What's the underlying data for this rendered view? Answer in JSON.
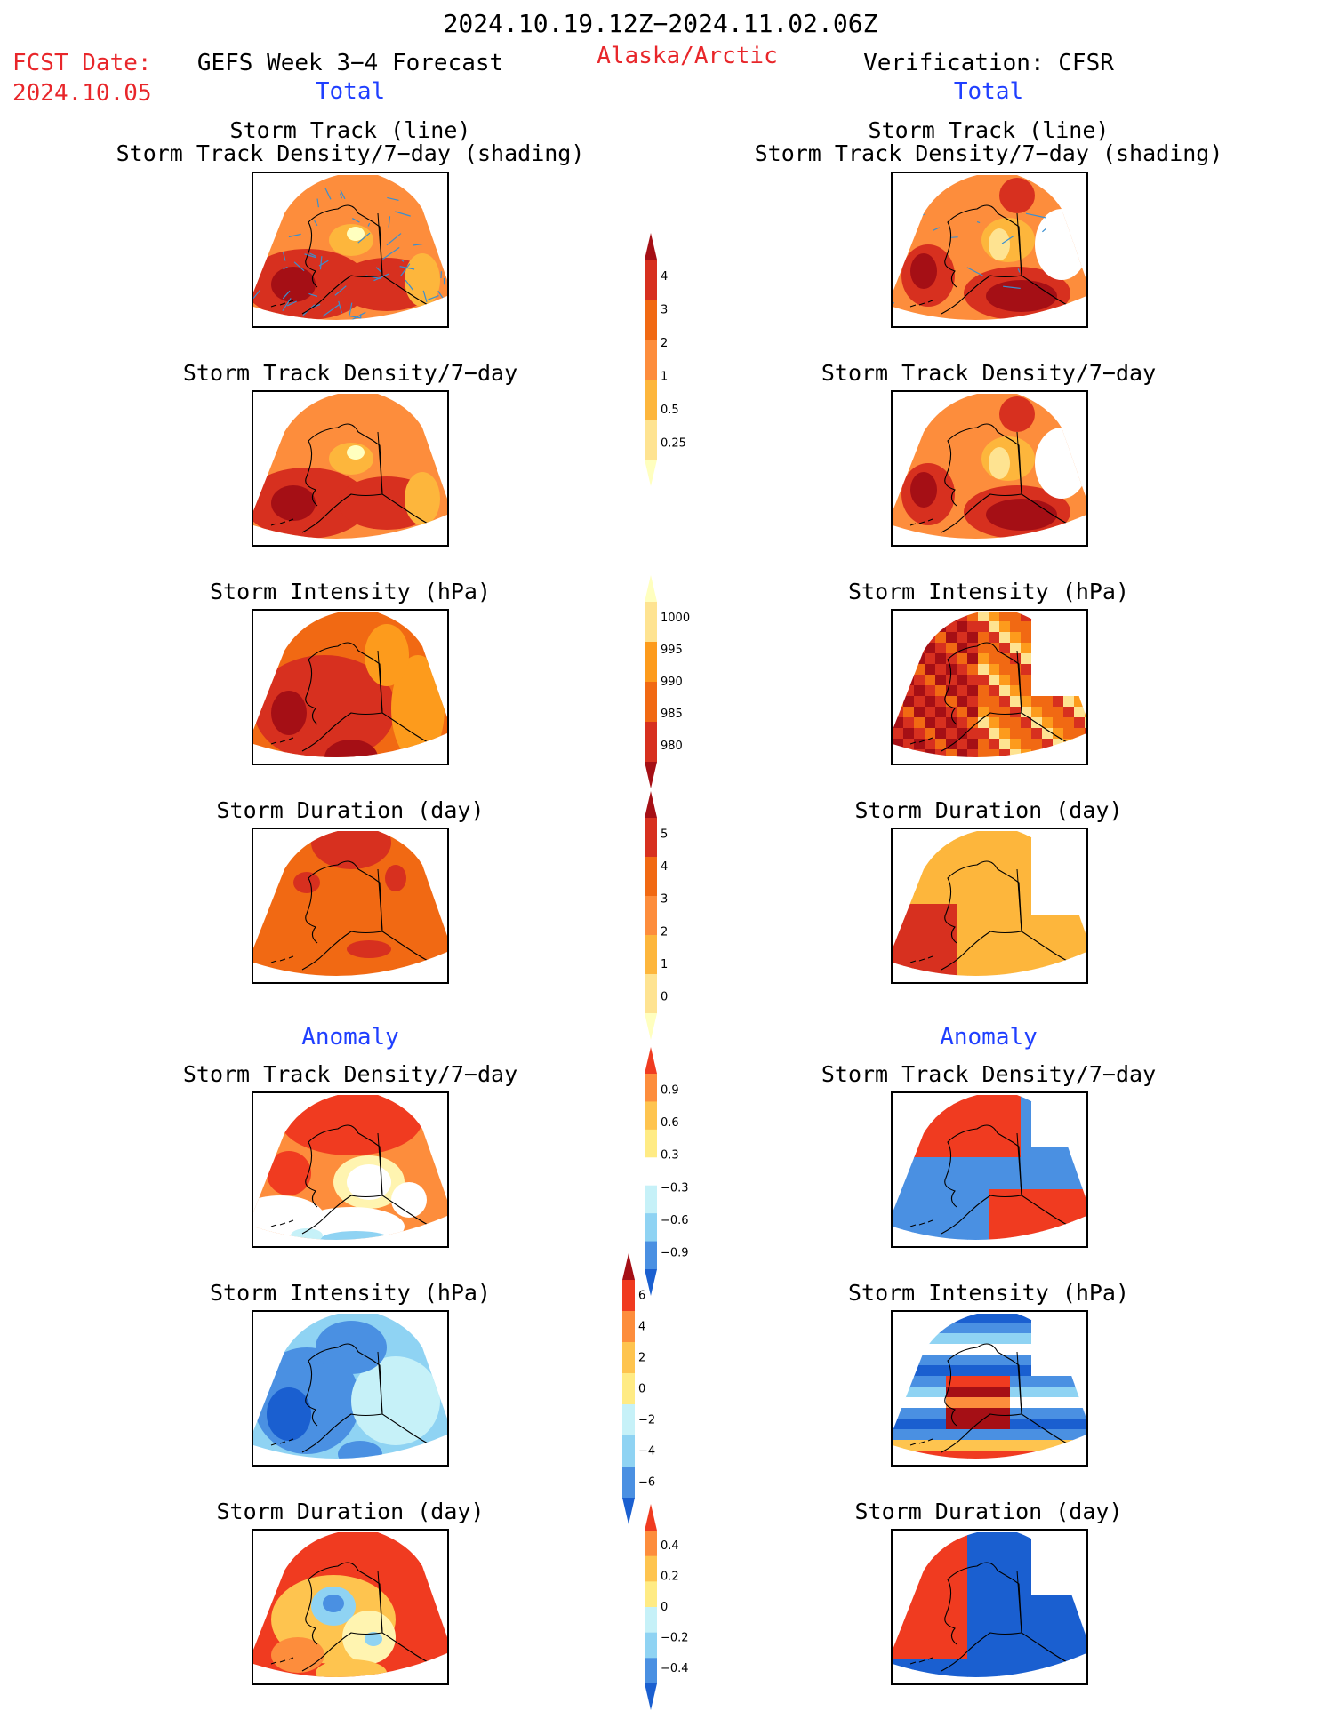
{
  "header": {
    "date_range": "2024.10.19.12Z−2024.11.02.06Z",
    "fcst_label": "FCST Date:",
    "fcst_date": "2024.10.05",
    "left_title": "GEFS Week 3−4 Forecast",
    "region": "Alaska/Arctic",
    "right_title": "Verification: CFSR",
    "total_label": "Total",
    "anomaly_label": "Anomaly"
  },
  "panel_titles": {
    "track_line": "Storm Track (line)",
    "track_shading": "Storm Track Density/7−day (shading)",
    "density": "Storm Track Density/7−day",
    "intensity": "Storm Intensity (hPa)",
    "duration": "Storm Duration (day)"
  },
  "colorbars": {
    "density": {
      "labels": [
        "4",
        "3",
        "2",
        "1",
        "0.5",
        "0.25"
      ],
      "colors": [
        "#a50f15",
        "#d7301f",
        "#f16913",
        "#fd8d3c",
        "#fdb63c",
        "#fee391",
        "#ffffbf"
      ]
    },
    "intensity": {
      "labels": [
        "1000",
        "995",
        "990",
        "985",
        "980"
      ],
      "colors": [
        "#ffffbf",
        "#fee391",
        "#fd9b1c",
        "#f16913",
        "#d7301f",
        "#a50f15"
      ]
    },
    "duration": {
      "labels": [
        "5",
        "4",
        "3",
        "2",
        "1",
        "0"
      ],
      "colors": [
        "#a50f15",
        "#d7301f",
        "#f16913",
        "#fd8d3c",
        "#fdb63c",
        "#fee391",
        "#ffffbf"
      ]
    },
    "anom_density": {
      "labels": [
        "0.9",
        "0.6",
        "0.3",
        "−0.3",
        "−0.6",
        "−0.9"
      ],
      "colors": [
        "#f03b20",
        "#fd8d3c",
        "#fec44f",
        "#ffeb84",
        "#ffffff",
        "#c6f1f8",
        "#8fd3f3",
        "#4a90e2",
        "#1a5fd0"
      ]
    },
    "anom_intensity": {
      "labels": [
        "6",
        "4",
        "2",
        "0",
        "−2",
        "−4",
        "−6"
      ],
      "colors": [
        "#a50f15",
        "#f03b20",
        "#fd8d3c",
        "#fec44f",
        "#ffeb84",
        "#c6f1f8",
        "#8fd3f3",
        "#4a90e2",
        "#1a5fd0"
      ]
    },
    "anom_duration": {
      "labels": [
        "0.4",
        "0.2",
        "0",
        "−0.2",
        "−0.4"
      ],
      "colors": [
        "#f03b20",
        "#fd8d3c",
        "#fec44f",
        "#ffeb84",
        "#c6f1f8",
        "#8fd3f3",
        "#4a90e2",
        "#1a5fd0"
      ]
    }
  }
}
